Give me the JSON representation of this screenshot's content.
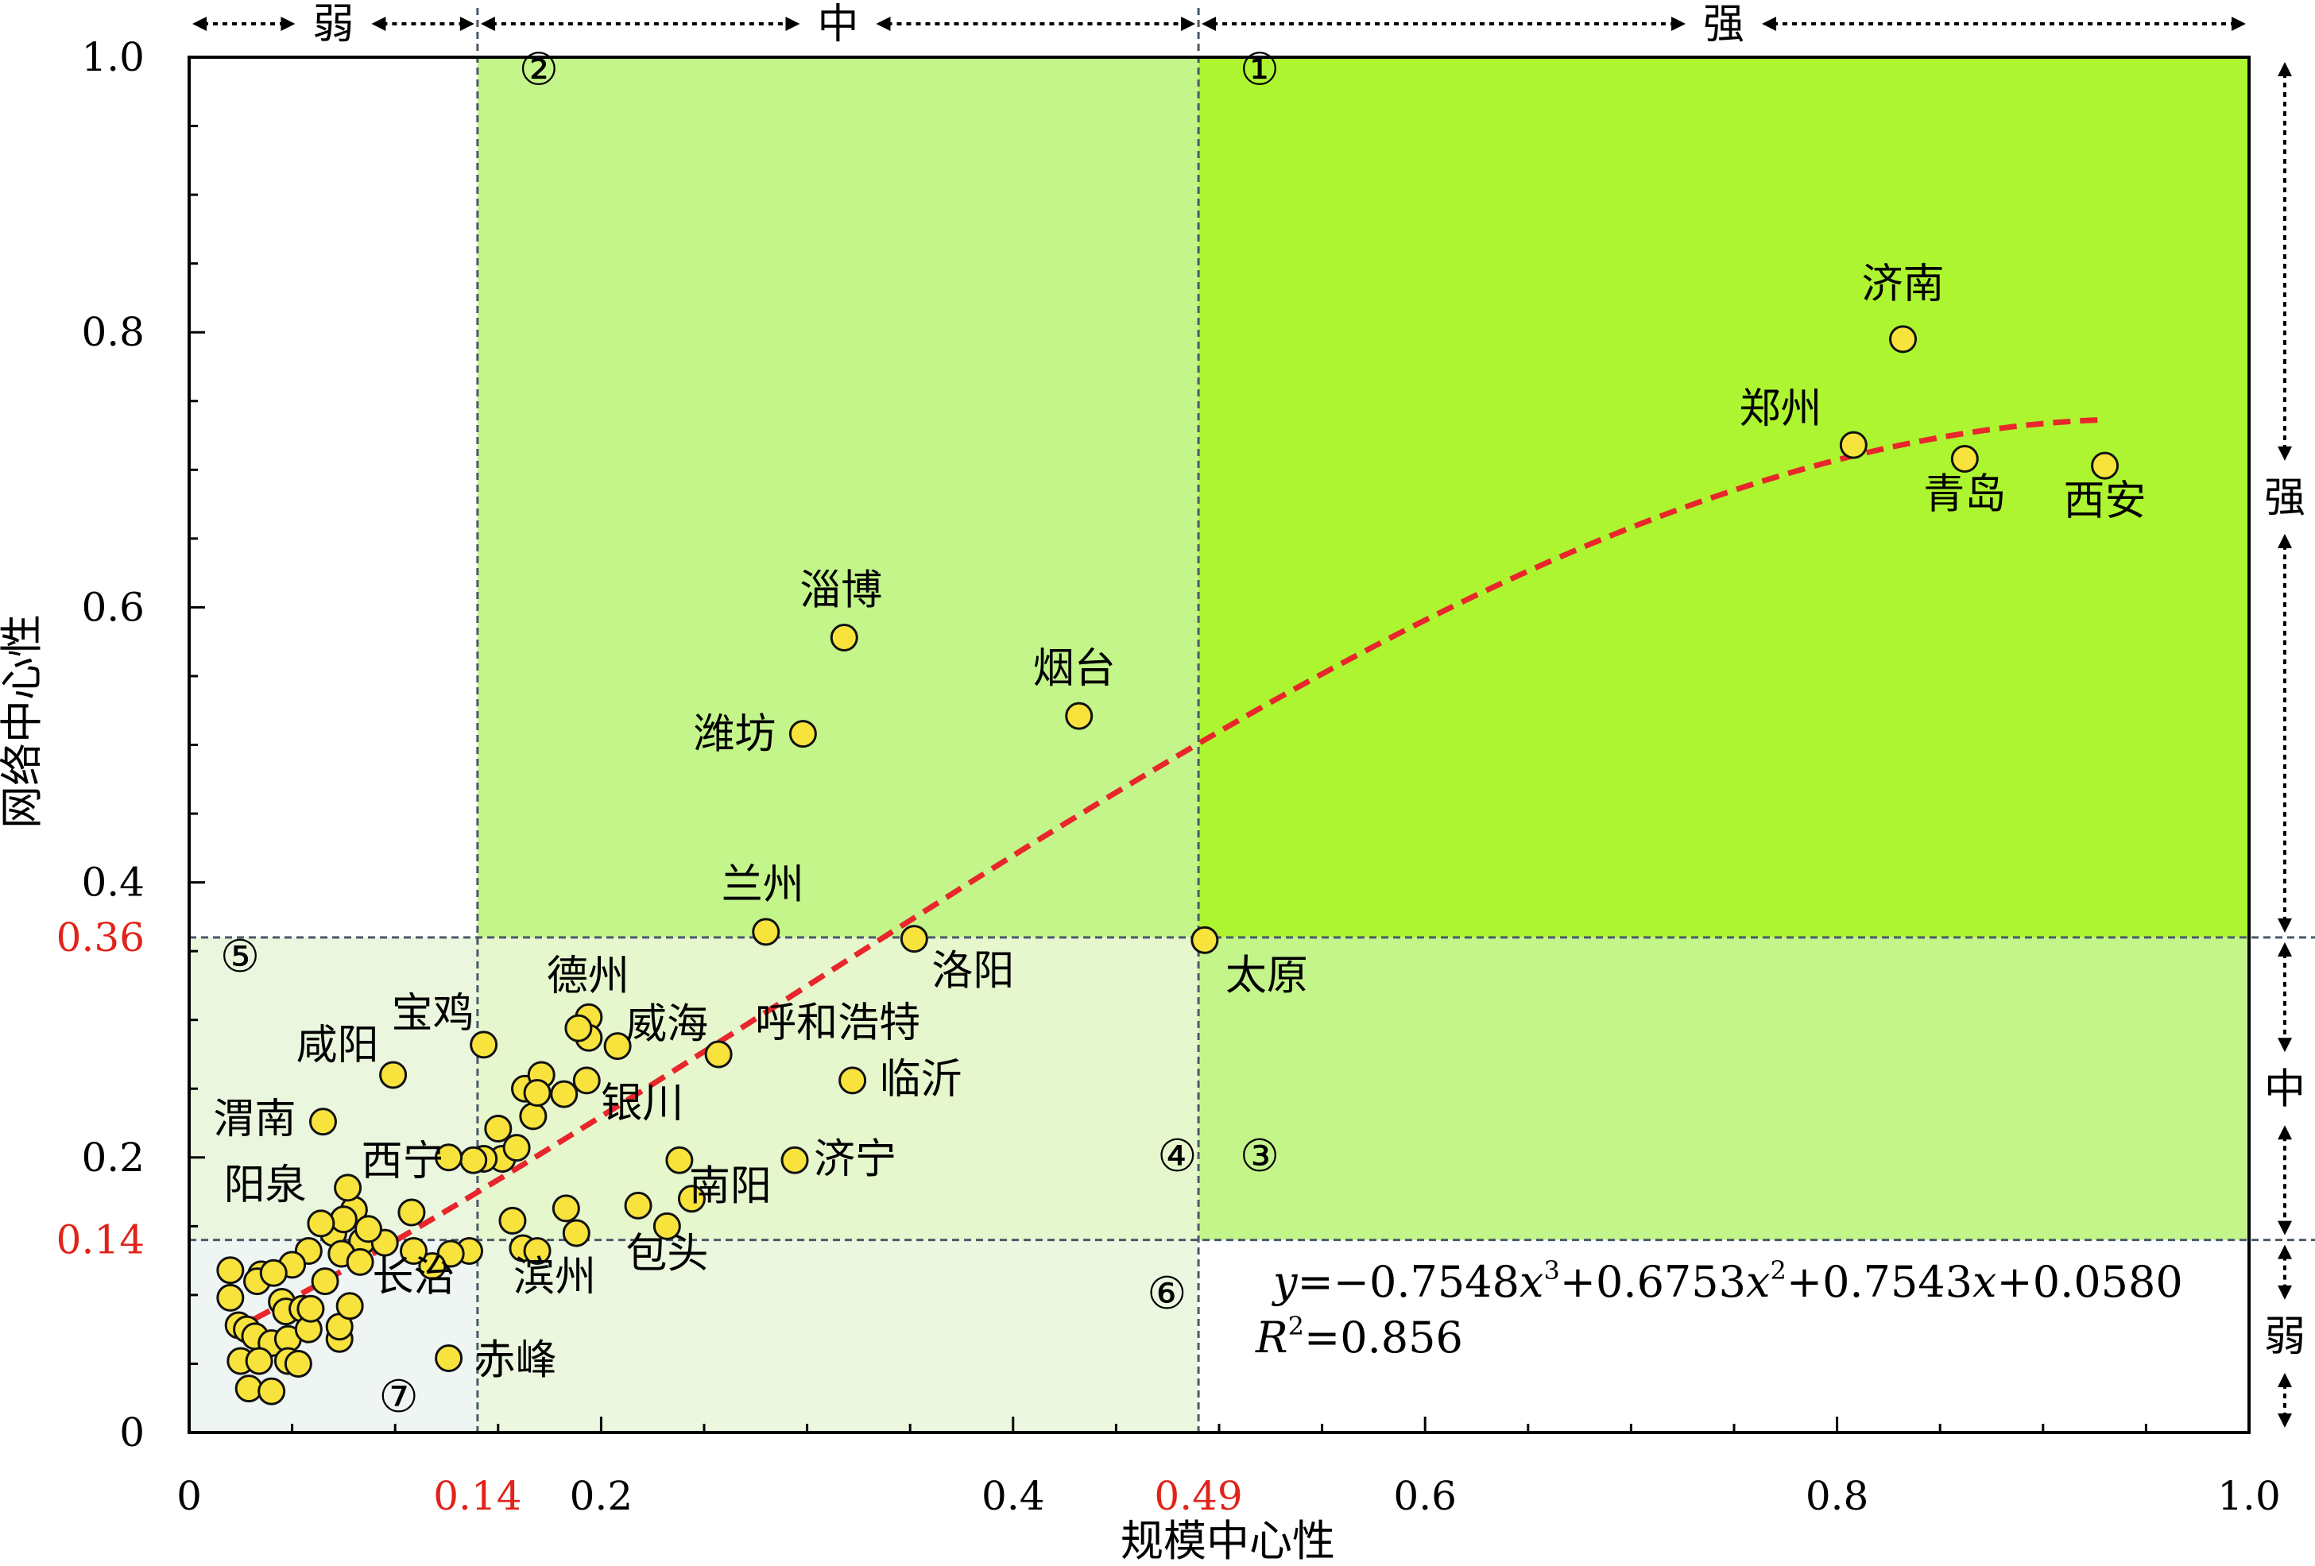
{
  "chart_data": {
    "type": "scatter",
    "xlabel": "规模中心性",
    "ylabel": "网络中心性",
    "xlim": [
      0,
      1.0
    ],
    "ylim": [
      0,
      1.0
    ],
    "x_ticks": [
      {
        "value": 0,
        "label": "0",
        "highlight": false
      },
      {
        "value": 0.14,
        "label": "0.14",
        "highlight": true
      },
      {
        "value": 0.2,
        "label": "0.2",
        "highlight": false
      },
      {
        "value": 0.4,
        "label": "0.4",
        "highlight": false
      },
      {
        "value": 0.49,
        "label": "0.49",
        "highlight": true
      },
      {
        "value": 0.6,
        "label": "0.6",
        "highlight": false
      },
      {
        "value": 0.8,
        "label": "0.8",
        "highlight": false
      },
      {
        "value": 1.0,
        "label": "1.0",
        "highlight": false
      }
    ],
    "y_ticks": [
      {
        "value": 0,
        "label": "0",
        "highlight": false
      },
      {
        "value": 0.14,
        "label": "0.14",
        "highlight": true
      },
      {
        "value": 0.2,
        "label": "0.2",
        "highlight": false
      },
      {
        "value": 0.36,
        "label": "0.36",
        "highlight": true
      },
      {
        "value": 0.4,
        "label": "0.4",
        "highlight": false
      },
      {
        "value": 0.6,
        "label": "0.6",
        "highlight": false
      },
      {
        "value": 0.8,
        "label": "0.8",
        "highlight": false
      },
      {
        "value": 1.0,
        "label": "1.0",
        "highlight": false
      }
    ],
    "thresholds": {
      "x": [
        0.14,
        0.49
      ],
      "y": [
        0.14,
        0.36
      ]
    },
    "top_bands": [
      {
        "label": "弱",
        "from": 0,
        "to": 0.14
      },
      {
        "label": "中",
        "from": 0.14,
        "to": 0.49
      },
      {
        "label": "强",
        "from": 0.49,
        "to": 1.0
      }
    ],
    "right_bands": [
      {
        "label": "强",
        "from": 0.36,
        "to": 1.0
      },
      {
        "label": "中",
        "from": 0.14,
        "to": 0.36
      },
      {
        "label": "弱",
        "from": 0,
        "to": 0.14
      }
    ],
    "regions": [
      {
        "label": "①",
        "x": [
          0.49,
          1.0
        ],
        "y": [
          0.36,
          1.0
        ],
        "color": "#adf531",
        "label_at": [
          0.51,
          0.98
        ]
      },
      {
        "label": "②",
        "x": [
          0.14,
          0.49
        ],
        "y": [
          0.36,
          1.0
        ],
        "color": "#c4f58a",
        "label_at": [
          0.16,
          0.98
        ]
      },
      {
        "label": "③",
        "x": [
          0.49,
          1.0
        ],
        "y": [
          0.14,
          0.36
        ],
        "color": "#c4f58a",
        "label_at": [
          0.51,
          0.19
        ]
      },
      {
        "label": "④",
        "x": [
          0.14,
          0.49
        ],
        "y": [
          0.14,
          0.36
        ],
        "color": "#e6f6cd",
        "label_at": [
          0.47,
          0.19
        ]
      },
      {
        "label": "⑤",
        "x": [
          0,
          0.14
        ],
        "y": [
          0.14,
          0.36
        ],
        "color": "#eaf6dd",
        "label_at": [
          0.015,
          0.335
        ]
      },
      {
        "label": "⑥",
        "x": [
          0.14,
          0.49
        ],
        "y": [
          0,
          0.14
        ],
        "color": "#ecf7df",
        "label_at": [
          0.465,
          0.09
        ]
      },
      {
        "label": "⑦",
        "x": [
          0,
          0.14
        ],
        "y": [
          0,
          0.14
        ],
        "color": "#eef5f3",
        "label_at": [
          0.092,
          0.015
        ]
      }
    ],
    "fit_curve": {
      "a3": -0.7548,
      "a2": 0.6753,
      "a1": 0.7543,
      "a0": 0.058,
      "x_range": [
        0.02,
        0.93
      ],
      "color": "#e8262b"
    },
    "equation": {
      "prefix": "y",
      "eq": "=−0.7548",
      "x3": "x",
      "sup3": "3",
      "c2": "+0.6753",
      "x2": "x",
      "sup2": "2",
      "c1": "+0.7543",
      "x1": "x",
      "c0": "+0.0580"
    },
    "r2": {
      "r": "R",
      "sup": "2",
      "value": "=0.856"
    },
    "labeled_points": [
      {
        "name": "济南",
        "x": 0.832,
        "y": 0.795
      },
      {
        "name": "郑州",
        "x": 0.808,
        "y": 0.718
      },
      {
        "name": "青岛",
        "x": 0.862,
        "y": 0.708
      },
      {
        "name": "西安",
        "x": 0.93,
        "y": 0.703
      },
      {
        "name": "淄博",
        "x": 0.318,
        "y": 0.578
      },
      {
        "name": "烟台",
        "x": 0.432,
        "y": 0.521
      },
      {
        "name": "潍坊",
        "x": 0.298,
        "y": 0.508
      },
      {
        "name": "兰州",
        "x": 0.28,
        "y": 0.364
      },
      {
        "name": "洛阳",
        "x": 0.352,
        "y": 0.359
      },
      {
        "name": "太原",
        "x": 0.493,
        "y": 0.358
      },
      {
        "name": "德州",
        "x": 0.189,
        "y": 0.294
      },
      {
        "name": "威海",
        "x": 0.208,
        "y": 0.281
      },
      {
        "name": "呼和浩特",
        "x": 0.257,
        "y": 0.275
      },
      {
        "name": "临沂",
        "x": 0.322,
        "y": 0.256
      },
      {
        "name": "宝鸡",
        "x": 0.143,
        "y": 0.282
      },
      {
        "name": "咸阳",
        "x": 0.099,
        "y": 0.26
      },
      {
        "name": "银川",
        "x": 0.193,
        "y": 0.256
      },
      {
        "name": "渭南",
        "x": 0.065,
        "y": 0.226
      },
      {
        "name": "西宁",
        "x": 0.126,
        "y": 0.2
      },
      {
        "name": "济宁",
        "x": 0.294,
        "y": 0.198
      },
      {
        "name": "南阳",
        "x": 0.238,
        "y": 0.198
      },
      {
        "name": "阳泉",
        "x": 0.077,
        "y": 0.178
      },
      {
        "name": "长治",
        "x": 0.109,
        "y": 0.132
      },
      {
        "name": "滨州",
        "x": 0.169,
        "y": 0.132
      },
      {
        "name": "包头",
        "x": 0.232,
        "y": 0.15
      },
      {
        "name": "赤峰",
        "x": 0.126,
        "y": 0.054
      }
    ],
    "unlabeled_points": [
      [
        0.152,
        0.199
      ],
      [
        0.143,
        0.199
      ],
      [
        0.15,
        0.221
      ],
      [
        0.159,
        0.207
      ],
      [
        0.167,
        0.23
      ],
      [
        0.163,
        0.25
      ],
      [
        0.171,
        0.26
      ],
      [
        0.169,
        0.247
      ],
      [
        0.194,
        0.302
      ],
      [
        0.194,
        0.287
      ],
      [
        0.182,
        0.246
      ],
      [
        0.183,
        0.163
      ],
      [
        0.188,
        0.145
      ],
      [
        0.157,
        0.154
      ],
      [
        0.162,
        0.134
      ],
      [
        0.136,
        0.132
      ],
      [
        0.127,
        0.13
      ],
      [
        0.218,
        0.165
      ],
      [
        0.244,
        0.17
      ],
      [
        0.138,
        0.198
      ],
      [
        0.108,
        0.16
      ],
      [
        0.084,
        0.139
      ],
      [
        0.08,
        0.162
      ],
      [
        0.07,
        0.145
      ],
      [
        0.075,
        0.155
      ],
      [
        0.095,
        0.138
      ],
      [
        0.118,
        0.121
      ],
      [
        0.058,
        0.132
      ],
      [
        0.064,
        0.152
      ],
      [
        0.074,
        0.13
      ],
      [
        0.083,
        0.124
      ],
      [
        0.05,
        0.122
      ],
      [
        0.045,
        0.095
      ],
      [
        0.02,
        0.118
      ],
      [
        0.02,
        0.098
      ],
      [
        0.035,
        0.115
      ],
      [
        0.033,
        0.11
      ],
      [
        0.047,
        0.088
      ],
      [
        0.055,
        0.09
      ],
      [
        0.024,
        0.078
      ],
      [
        0.028,
        0.075
      ],
      [
        0.032,
        0.07
      ],
      [
        0.04,
        0.065
      ],
      [
        0.048,
        0.068
      ],
      [
        0.058,
        0.075
      ],
      [
        0.073,
        0.068
      ],
      [
        0.073,
        0.077
      ],
      [
        0.025,
        0.052
      ],
      [
        0.034,
        0.052
      ],
      [
        0.048,
        0.052
      ],
      [
        0.053,
        0.05
      ],
      [
        0.029,
        0.032
      ],
      [
        0.04,
        0.03
      ],
      [
        0.059,
        0.09
      ],
      [
        0.078,
        0.092
      ],
      [
        0.041,
        0.116
      ],
      [
        0.066,
        0.11
      ],
      [
        0.087,
        0.148
      ]
    ]
  }
}
